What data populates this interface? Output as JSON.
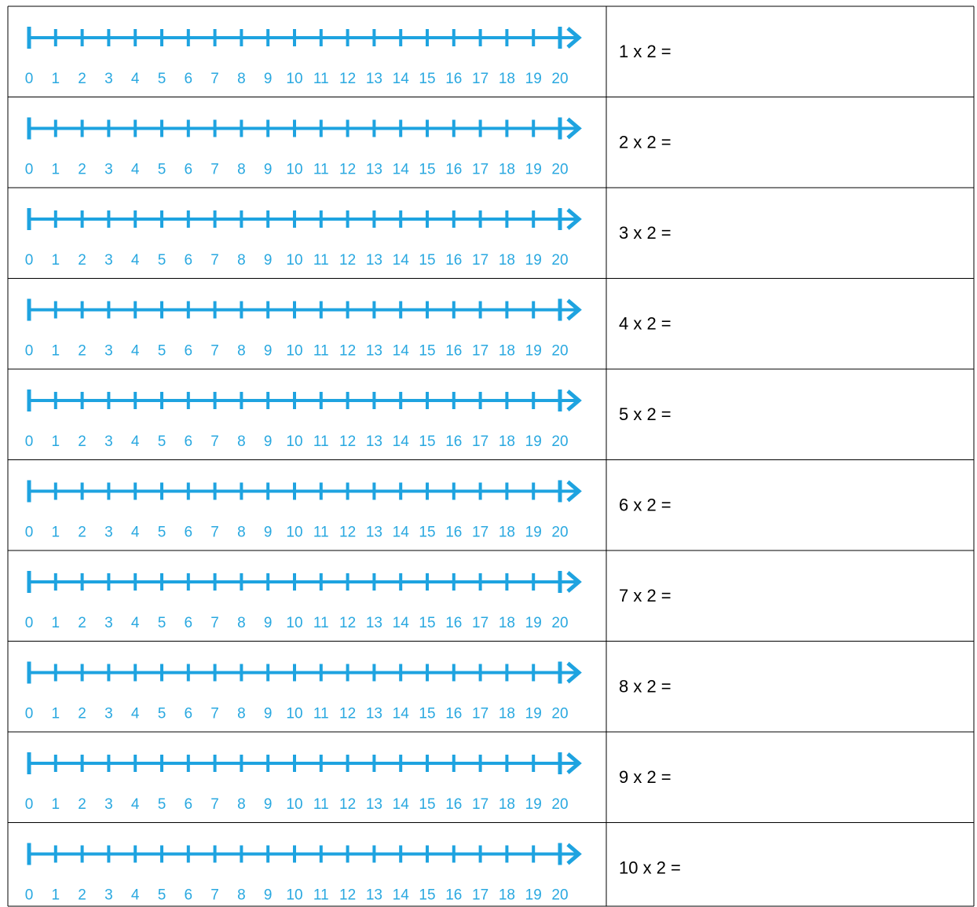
{
  "number_line_labels": [
    0,
    1,
    2,
    3,
    4,
    5,
    6,
    7,
    8,
    9,
    10,
    11,
    12,
    13,
    14,
    15,
    16,
    17,
    18,
    19,
    20
  ],
  "rows": [
    {
      "equation": "1 x 2 ="
    },
    {
      "equation": "2 x 2 ="
    },
    {
      "equation": "3 x 2 ="
    },
    {
      "equation": "4 x 2 ="
    },
    {
      "equation": "5 x 2 ="
    },
    {
      "equation": "6 x 2 ="
    },
    {
      "equation": "7 x 2 ="
    },
    {
      "equation": "8 x 2 ="
    },
    {
      "equation": "9 x 2 ="
    },
    {
      "equation": "10 x 2 ="
    }
  ]
}
